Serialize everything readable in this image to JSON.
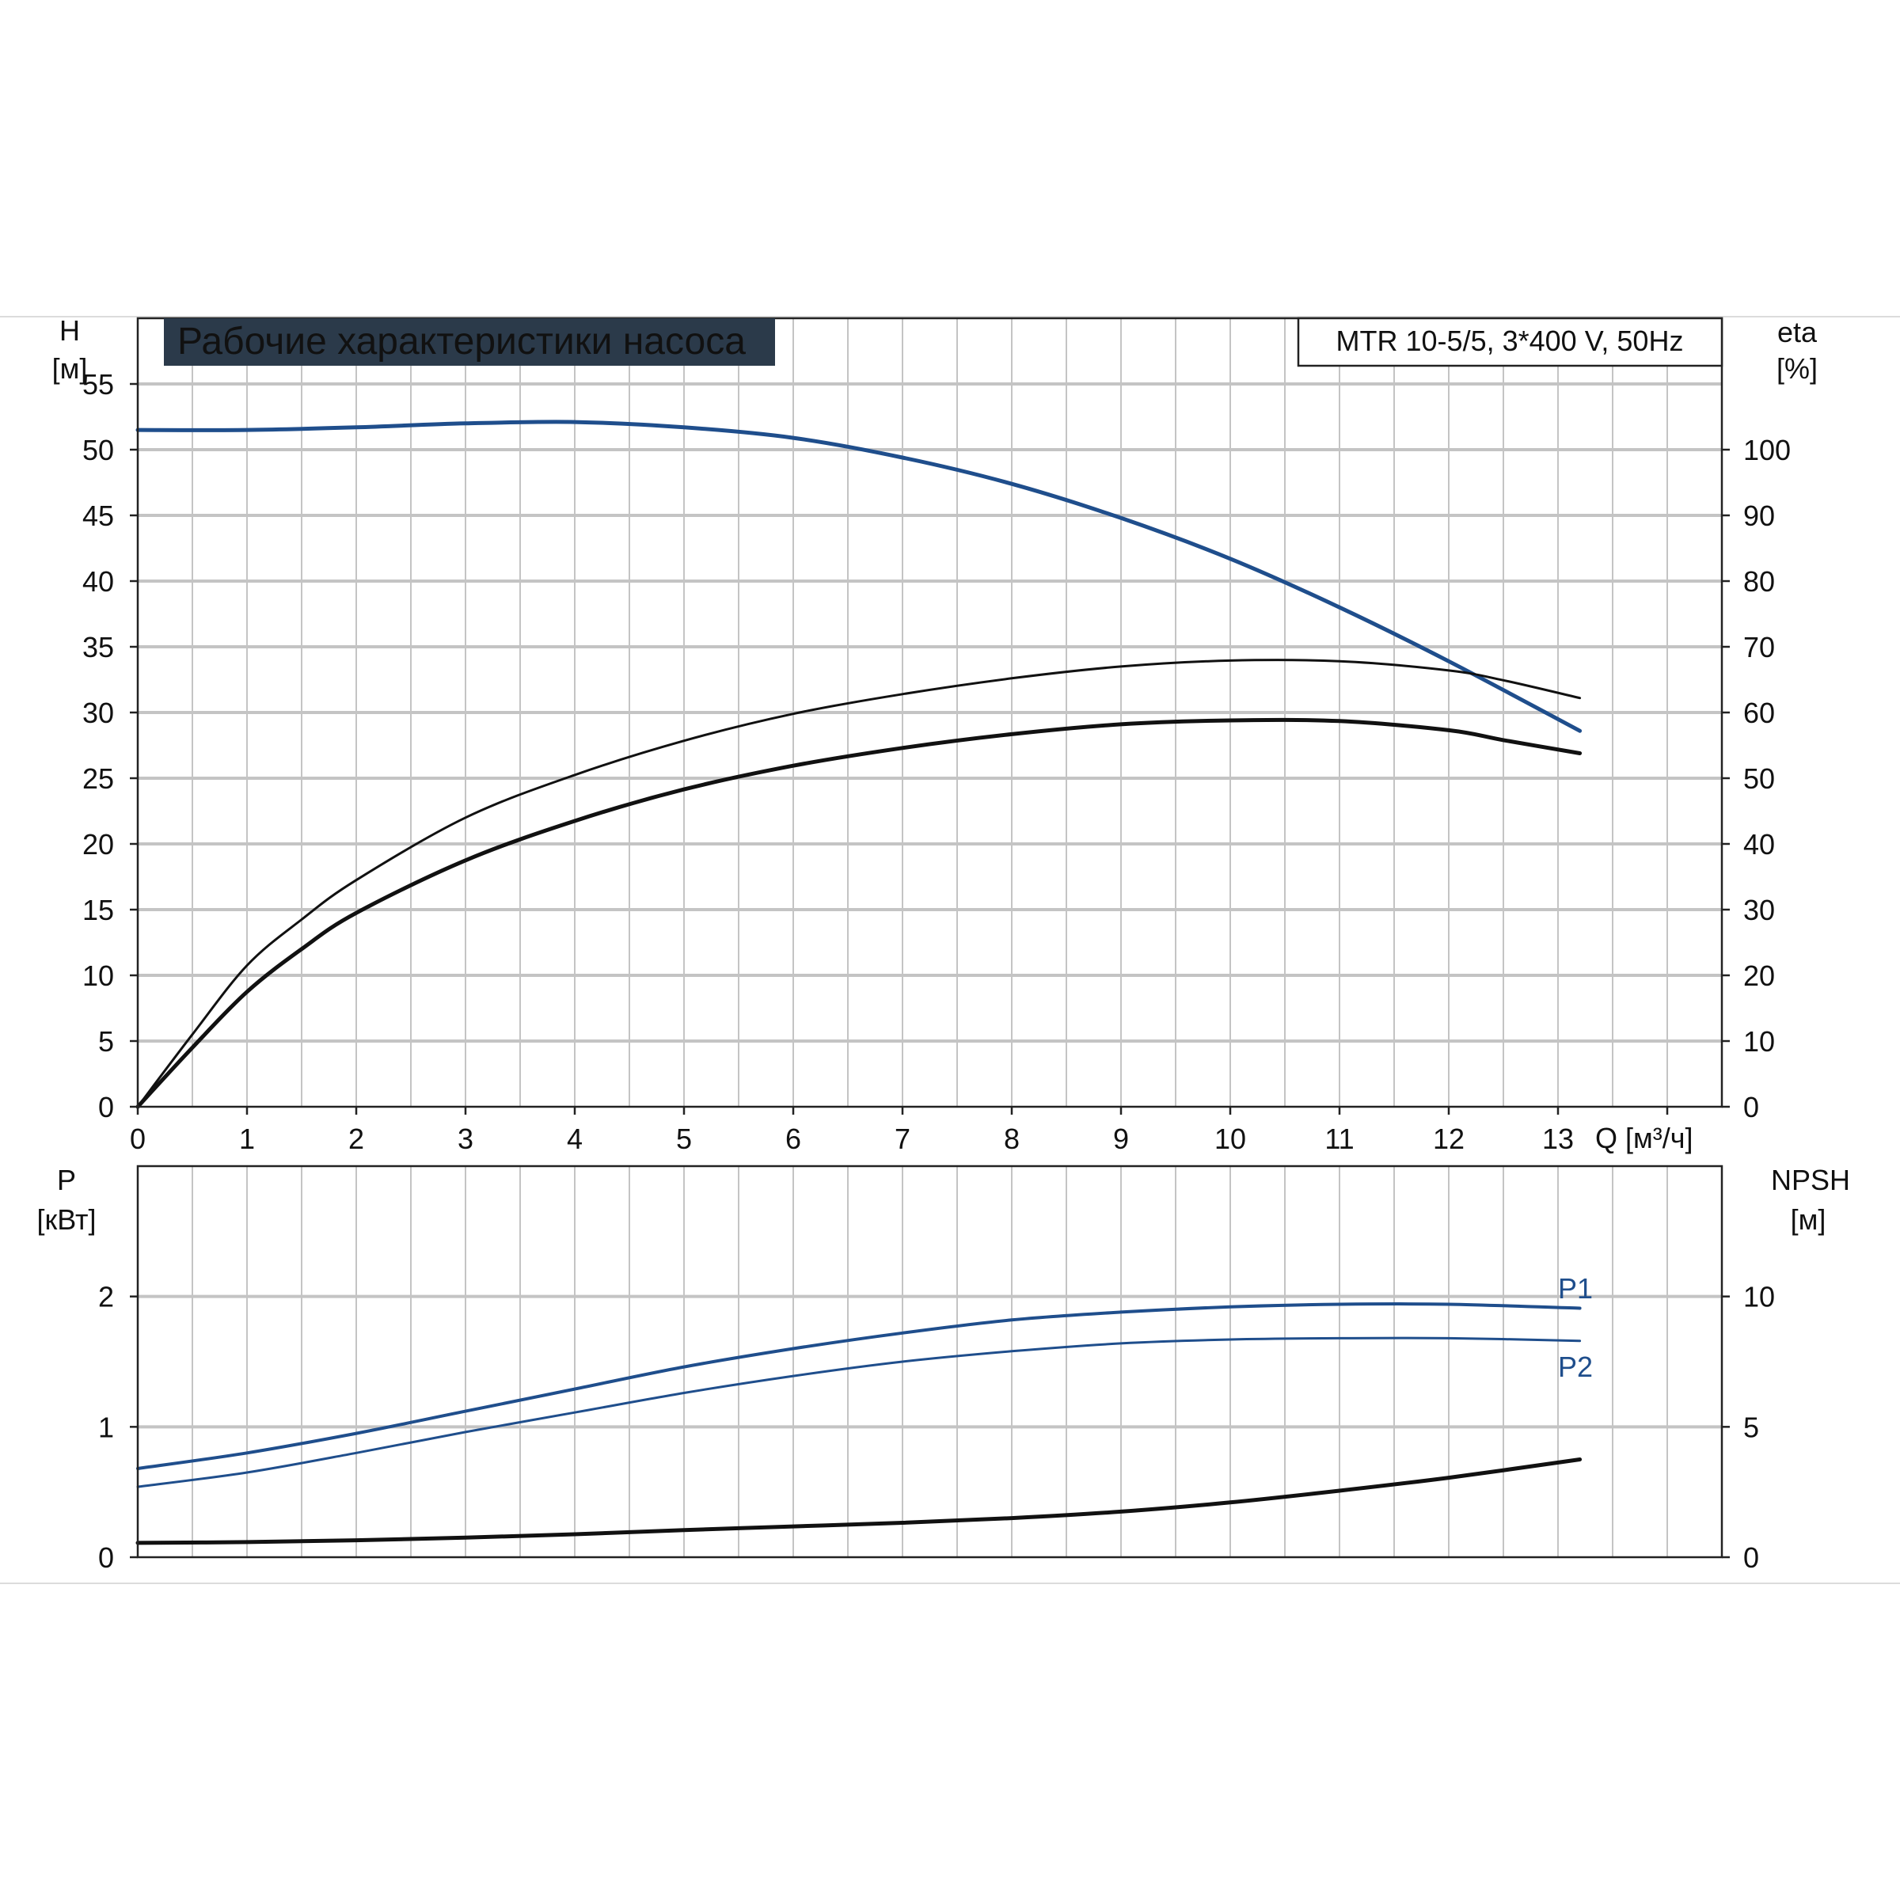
{
  "title": "Рабочие характеристики насоса",
  "model": "MTR 10-5/5, 3*400 V, 50Hz",
  "colors": {
    "blue": "#1f4e8c",
    "black": "#111111",
    "grid": "#c4c4c4",
    "title_bg": "#2b3a4a"
  },
  "chart_data": [
    {
      "type": "line",
      "panel": "top",
      "x_label": "Q [м³/ч]",
      "x_ticks": [
        "0",
        "1",
        "2",
        "3",
        "4",
        "5",
        "6",
        "7",
        "8",
        "9",
        "10",
        "11",
        "12",
        "13"
      ],
      "xlim": [
        0,
        14.5
      ],
      "y_left_label": {
        "name": "H",
        "unit": "[м]"
      },
      "y_left_ticks": [
        "0",
        "5",
        "10",
        "15",
        "20",
        "25",
        "30",
        "35",
        "40",
        "45",
        "50",
        "55"
      ],
      "y_left_lim": [
        0,
        60
      ],
      "y_right_label": {
        "name": "eta",
        "unit": "[%]"
      },
      "y_right_ticks": [
        "0",
        "10",
        "20",
        "30",
        "40",
        "50",
        "60",
        "70",
        "80",
        "90",
        "100"
      ],
      "y_right_lim": [
        0,
        120
      ],
      "grid": true,
      "series": [
        {
          "name": "H",
          "axis": "left",
          "color": "blue",
          "width": 5,
          "x": [
            0,
            1,
            2,
            3,
            4,
            5,
            6,
            7,
            8,
            9,
            10,
            11,
            12,
            13.2
          ],
          "y": [
            51.5,
            51.5,
            51.7,
            52.0,
            52.1,
            51.7,
            50.9,
            49.4,
            47.4,
            44.8,
            41.7,
            38.0,
            33.9,
            28.6
          ]
        },
        {
          "name": "eta",
          "axis": "right",
          "color": "black",
          "width": 3,
          "x": [
            0,
            0.5,
            1,
            1.5,
            2,
            3,
            4,
            5,
            6,
            7,
            8,
            9,
            10,
            11,
            12,
            12.5,
            13.2
          ],
          "y": [
            0,
            11,
            21.5,
            28.5,
            34.5,
            44,
            50.5,
            55.7,
            59.8,
            62.8,
            65.2,
            67.0,
            67.9,
            67.8,
            66.4,
            64.9,
            62.2
          ]
        },
        {
          "name": "eta_total",
          "axis": "right",
          "color": "black",
          "width": 5,
          "x": [
            0,
            0.5,
            1,
            1.5,
            2,
            3,
            4,
            5,
            6,
            7,
            8,
            9,
            10,
            11,
            12,
            12.5,
            13.2
          ],
          "y": [
            0,
            9,
            17.5,
            24,
            29.5,
            37.5,
            43.5,
            48.3,
            51.9,
            54.6,
            56.7,
            58.2,
            58.8,
            58.7,
            57.3,
            55.8,
            53.8
          ]
        }
      ]
    },
    {
      "type": "line",
      "panel": "bottom",
      "xlim": [
        0,
        14.5
      ],
      "y_left_label": {
        "name": "P",
        "unit": "[кВт]"
      },
      "y_left_ticks": [
        "0",
        "1",
        "2"
      ],
      "y_left_lim": [
        0,
        3
      ],
      "y_right_label": {
        "name": "NPSH",
        "unit": "[м]"
      },
      "y_right_ticks": [
        "0",
        "5",
        "10"
      ],
      "y_right_lim": [
        0,
        15
      ],
      "grid": true,
      "series": [
        {
          "name": "P1",
          "axis": "left",
          "color": "blue",
          "width": 4,
          "label": "P1",
          "x": [
            0,
            1,
            2,
            3,
            4,
            5,
            6,
            7,
            8,
            9,
            10,
            11,
            12,
            13.2
          ],
          "y": [
            0.68,
            0.8,
            0.95,
            1.12,
            1.29,
            1.46,
            1.6,
            1.72,
            1.82,
            1.88,
            1.92,
            1.94,
            1.94,
            1.91
          ]
        },
        {
          "name": "P2",
          "axis": "left",
          "color": "blue",
          "width": 3,
          "label": "P2",
          "x": [
            0,
            1,
            2,
            3,
            4,
            5,
            6,
            7,
            8,
            9,
            10,
            11,
            12,
            13.2
          ],
          "y": [
            0.54,
            0.65,
            0.8,
            0.96,
            1.11,
            1.26,
            1.39,
            1.5,
            1.58,
            1.64,
            1.67,
            1.68,
            1.68,
            1.66
          ]
        },
        {
          "name": "NPSH",
          "axis": "right",
          "color": "black",
          "width": 5,
          "x": [
            0,
            1,
            2,
            3,
            4,
            5,
            6,
            7,
            8,
            9,
            10,
            11,
            12,
            13.2
          ],
          "y": [
            0.55,
            0.58,
            0.65,
            0.75,
            0.88,
            1.04,
            1.18,
            1.32,
            1.5,
            1.75,
            2.1,
            2.55,
            3.05,
            3.75
          ]
        }
      ]
    }
  ]
}
